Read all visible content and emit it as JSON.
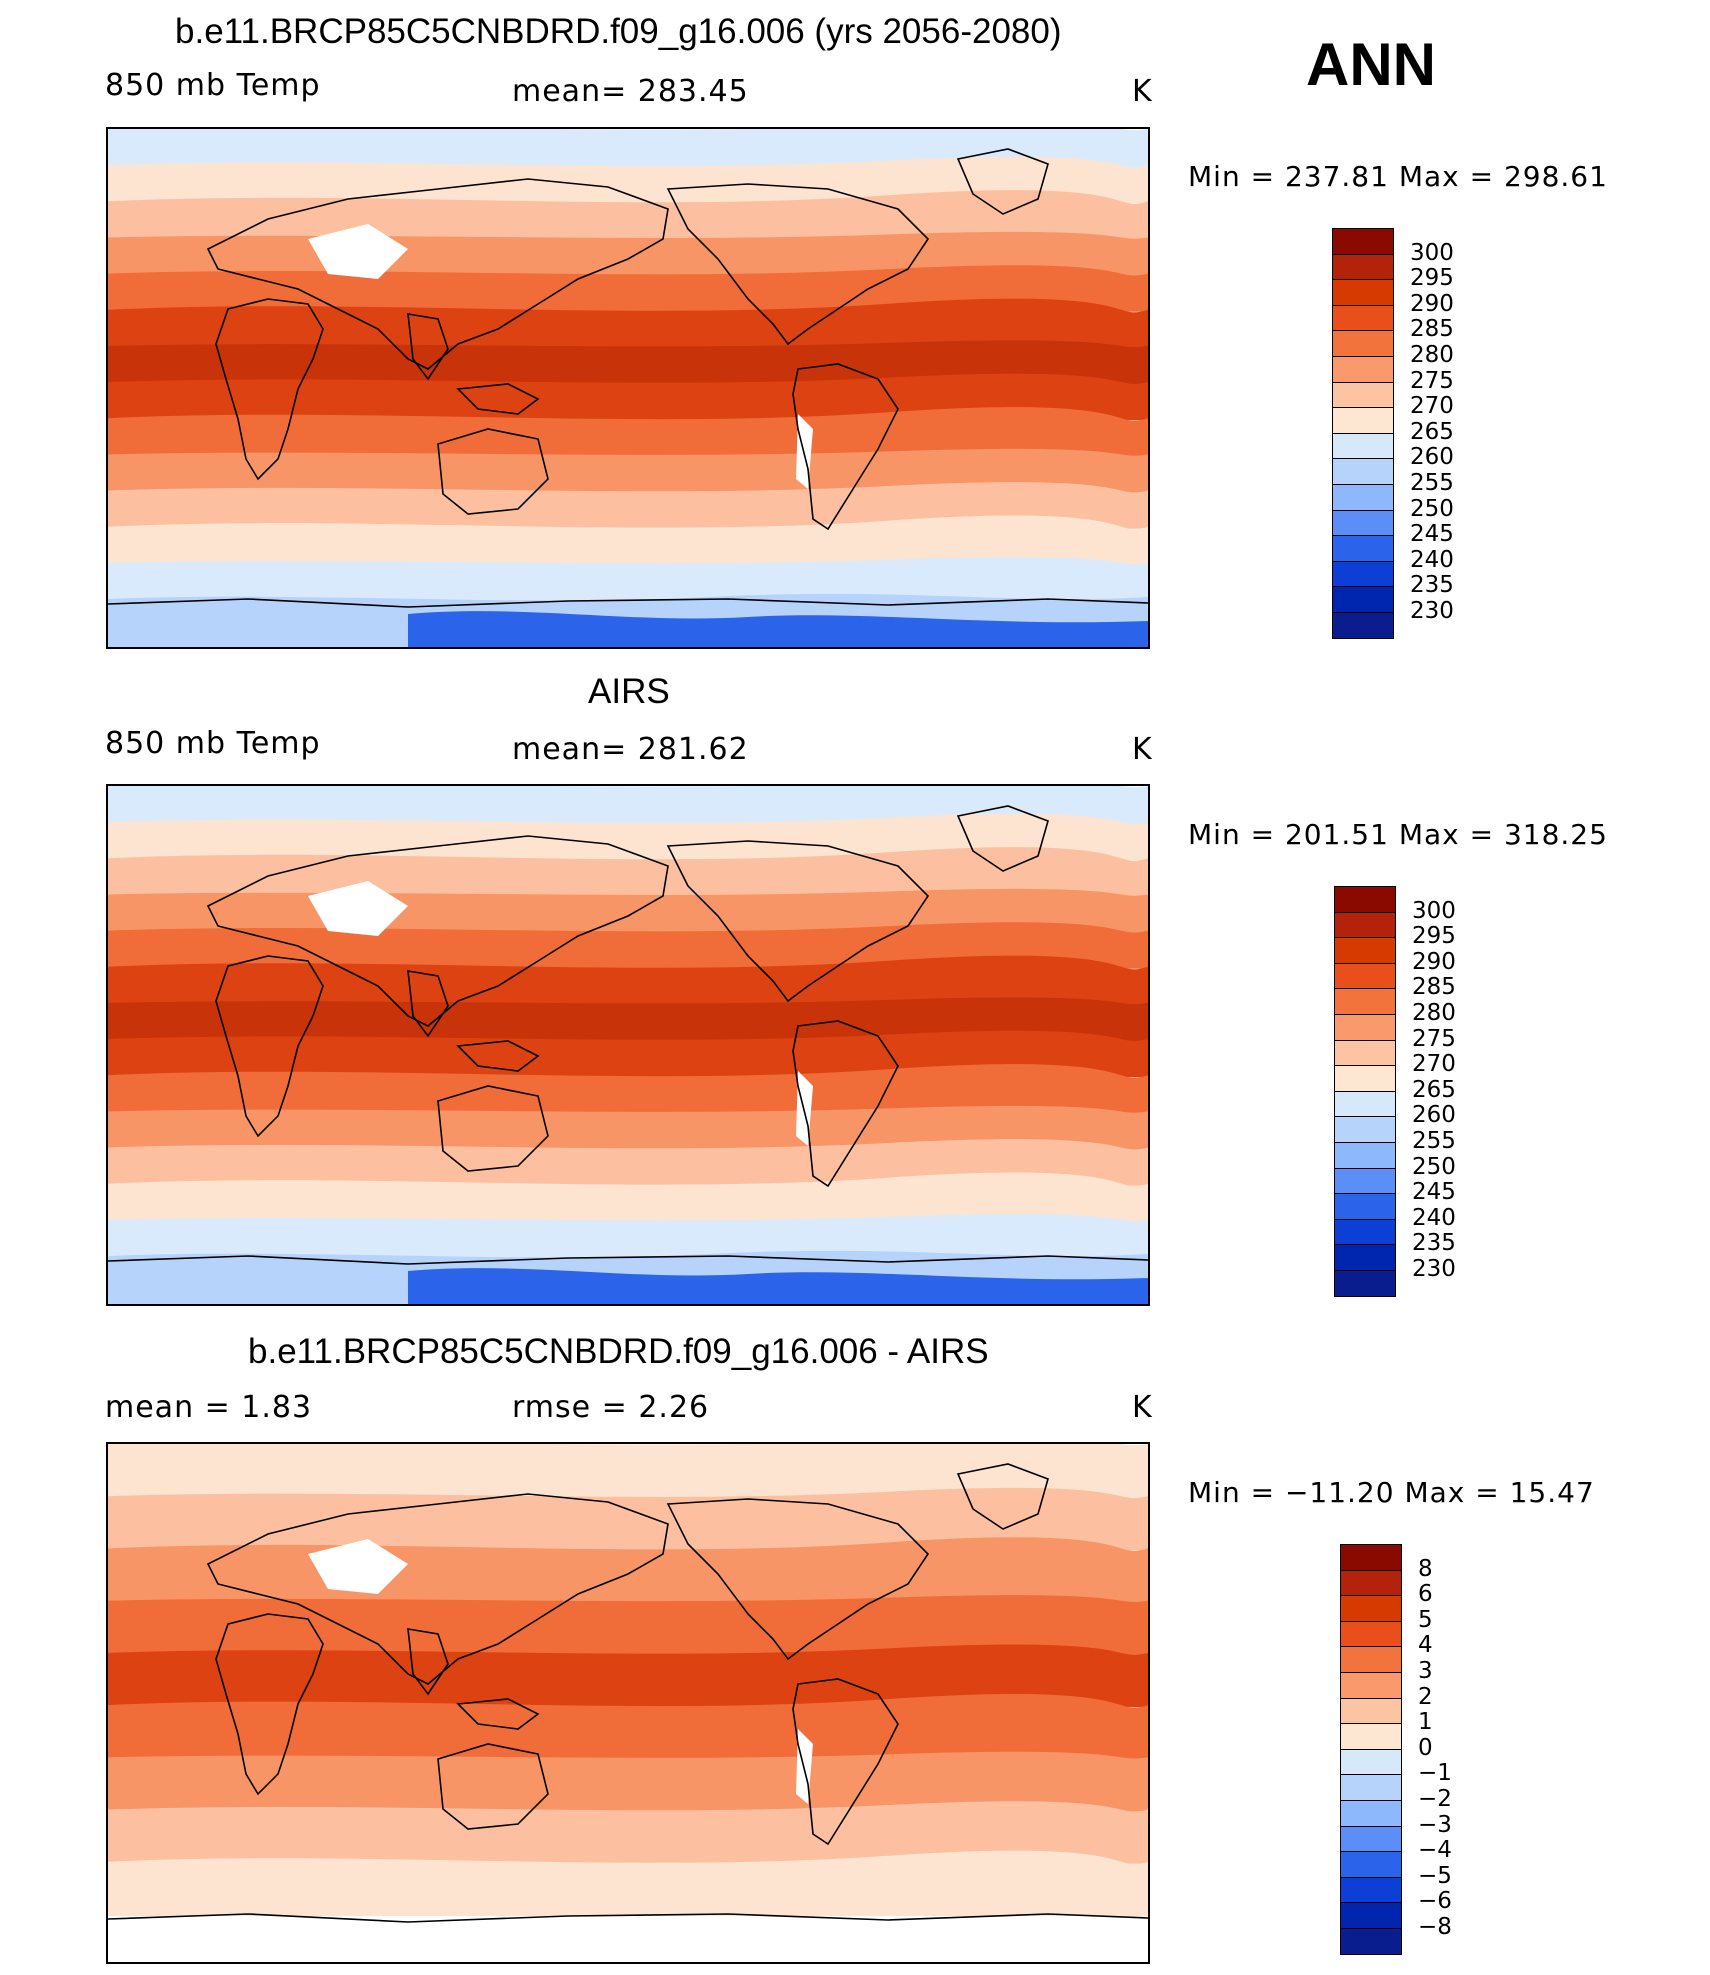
{
  "panels": [
    {
      "title": "b.e11.BRCP85C5CNBDRD.f09_g16.006 (yrs 2056-2080)",
      "left_label": "850 mb Temp",
      "center_label": "mean=  283.45",
      "units": "K",
      "min_max": "Min  =  237.81  Max  =  298.61",
      "colorbar_labels": [
        "300",
        "295",
        "290",
        "285",
        "280",
        "275",
        "270",
        "265",
        "260",
        "255",
        "250",
        "245",
        "240",
        "235",
        "230"
      ],
      "colorbar_colors": [
        "#8a0a00",
        "#b3220a",
        "#d73a00",
        "#e84f1a",
        "#f2743c",
        "#fa9a6c",
        "#fdc4a3",
        "#fde6d2",
        "#d6e9fb",
        "#b6d3fb",
        "#8db8fb",
        "#5b8ff7",
        "#2b63eb",
        "#0d3fd6",
        "#0026b0",
        "#0a1d8f"
      ],
      "map_colors": [
        "#d8eafc",
        "#fde4d0",
        "#fcc0a0",
        "#f89566",
        "#f06d3a",
        "#dd4312",
        "#c8330a"
      ],
      "show_antarctic_blue": true
    },
    {
      "title": "AIRS",
      "left_label": "850 mb Temp",
      "center_label": "mean=  281.62",
      "units": "K",
      "min_max": "Min  =  201.51  Max  =  318.25",
      "colorbar_labels": [
        "300",
        "295",
        "290",
        "285",
        "280",
        "275",
        "270",
        "265",
        "260",
        "255",
        "250",
        "245",
        "240",
        "235",
        "230"
      ],
      "colorbar_colors": [
        "#8a0a00",
        "#b3220a",
        "#d73a00",
        "#e84f1a",
        "#f2743c",
        "#fa9a6c",
        "#fdc4a3",
        "#fde6d2",
        "#d6e9fb",
        "#b6d3fb",
        "#8db8fb",
        "#5b8ff7",
        "#2b63eb",
        "#0d3fd6",
        "#0026b0",
        "#0a1d8f"
      ],
      "map_colors": [
        "#d8eafc",
        "#fde4d0",
        "#fcc0a0",
        "#f89566",
        "#f06d3a",
        "#dd4312",
        "#c8330a"
      ],
      "show_antarctic_blue": true
    },
    {
      "title": "b.e11.BRCP85C5CNBDRD.f09_g16.006 - AIRS",
      "left_label": "mean  =     1.83",
      "center_label": "rmse  =     2.26",
      "units": "K",
      "min_max": "Min  =  −11.20  Max  =    15.47",
      "colorbar_labels": [
        "8",
        "6",
        "5",
        "4",
        "3",
        "2",
        "1",
        "0",
        "−1",
        "−2",
        "−3",
        "−4",
        "−5",
        "−6",
        "−8"
      ],
      "colorbar_colors": [
        "#8a0a00",
        "#b3220a",
        "#d73a00",
        "#e84f1a",
        "#f2743c",
        "#fa9a6c",
        "#fdc4a3",
        "#fde6d2",
        "#d6e9fb",
        "#b6d3fb",
        "#8db8fb",
        "#5b8ff7",
        "#2b63eb",
        "#0d3fd6",
        "#0026b0",
        "#0a1d8f"
      ],
      "map_colors": [
        "#fde4d0",
        "#fcc0a0",
        "#f89566",
        "#f06d3a",
        "#dd4312"
      ],
      "show_antarctic_blue": false
    }
  ],
  "season": "ANN"
}
